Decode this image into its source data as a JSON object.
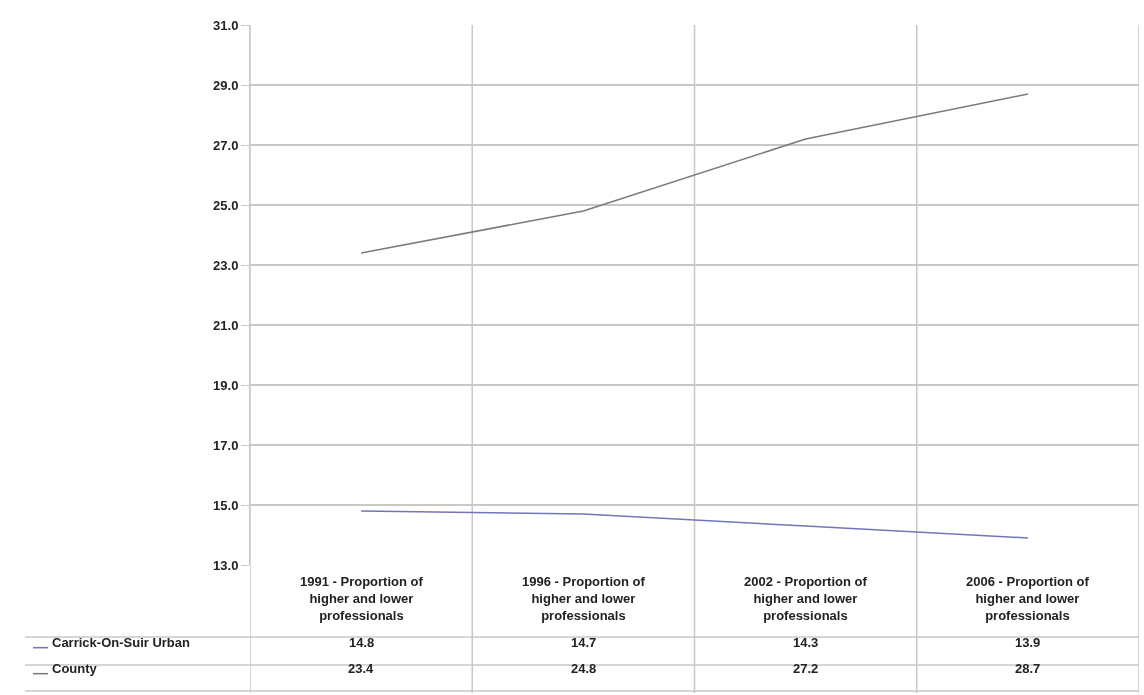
{
  "chart_data": {
    "type": "line",
    "categories": [
      "1991 - Proportion of higher and lower professionals",
      "1996 - Proportion of higher and lower professionals",
      "2002 - Proportion of higher and lower professionals",
      "2006 - Proportion of higher and lower professionals"
    ],
    "series": [
      {
        "name": "Carrick-On-Suir Urban",
        "color": "#7474b8",
        "values": [
          14.8,
          14.7,
          14.3,
          13.9
        ]
      },
      {
        "name": "County",
        "color": "#7a7a7a",
        "values": [
          23.4,
          24.8,
          27.2,
          28.7
        ]
      }
    ],
    "ylim": [
      13,
      31
    ],
    "yticks": [
      {
        "value": 13,
        "label": "13.0"
      },
      {
        "value": 15,
        "label": "15.0"
      },
      {
        "value": 17,
        "label": "17.0"
      },
      {
        "value": 19,
        "label": "19.0"
      },
      {
        "value": 21,
        "label": "21.0"
      },
      {
        "value": 23,
        "label": "23.0"
      },
      {
        "value": 25,
        "label": "25.0"
      },
      {
        "value": 27,
        "label": "27.0"
      },
      {
        "value": 29,
        "label": "29.0"
      },
      {
        "value": 31,
        "label": "31.0"
      }
    ],
    "grid": true,
    "legend": "bottom",
    "data_labels": true,
    "marker": "none",
    "line_style": "solid"
  }
}
